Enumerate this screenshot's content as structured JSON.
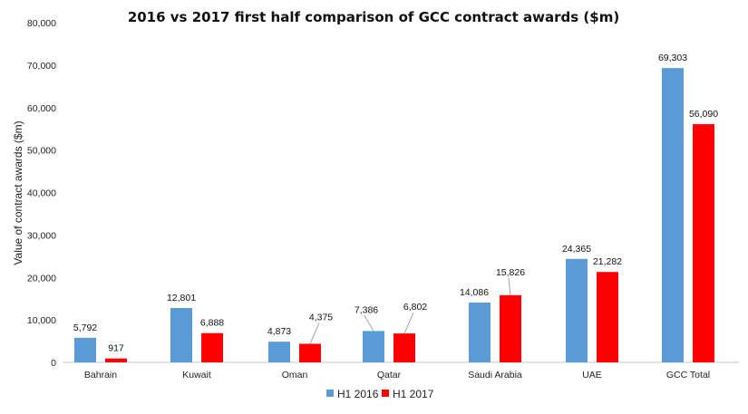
{
  "chart_data": {
    "type": "bar",
    "title": "2016 vs 2017 first half comparison of GCC contract awards ($m)",
    "ylabel": "Value of contract awards ($m)",
    "xlabel": "",
    "ylim": [
      0,
      80000
    ],
    "yticks": [
      "0",
      "10,000",
      "20,000",
      "30,000",
      "40,000",
      "50,000",
      "60,000",
      "70,000",
      "80,000"
    ],
    "grid": false,
    "legend_position": "bottom",
    "categories": [
      "Bahrain",
      "Kuwait",
      "Oman",
      "Qatar",
      "Saudi Arabia",
      "UAE",
      "GCC Total"
    ],
    "series": [
      {
        "name": "H1 2016",
        "color": "#5b9bd5",
        "values": [
          5792,
          12801,
          4873,
          7386,
          14086,
          24365,
          69303
        ],
        "labels": [
          "5,792",
          "12,801",
          "4,873",
          "7,386",
          "14,086",
          "24,365",
          "69,303"
        ]
      },
      {
        "name": "H1 2017",
        "color": "#ff0000",
        "values": [
          917,
          6888,
          4375,
          6802,
          15826,
          21282,
          56090
        ],
        "labels": [
          "917",
          "6,888",
          "4,375",
          "6,802",
          "15,826",
          "21,282",
          "56,090"
        ]
      }
    ]
  }
}
